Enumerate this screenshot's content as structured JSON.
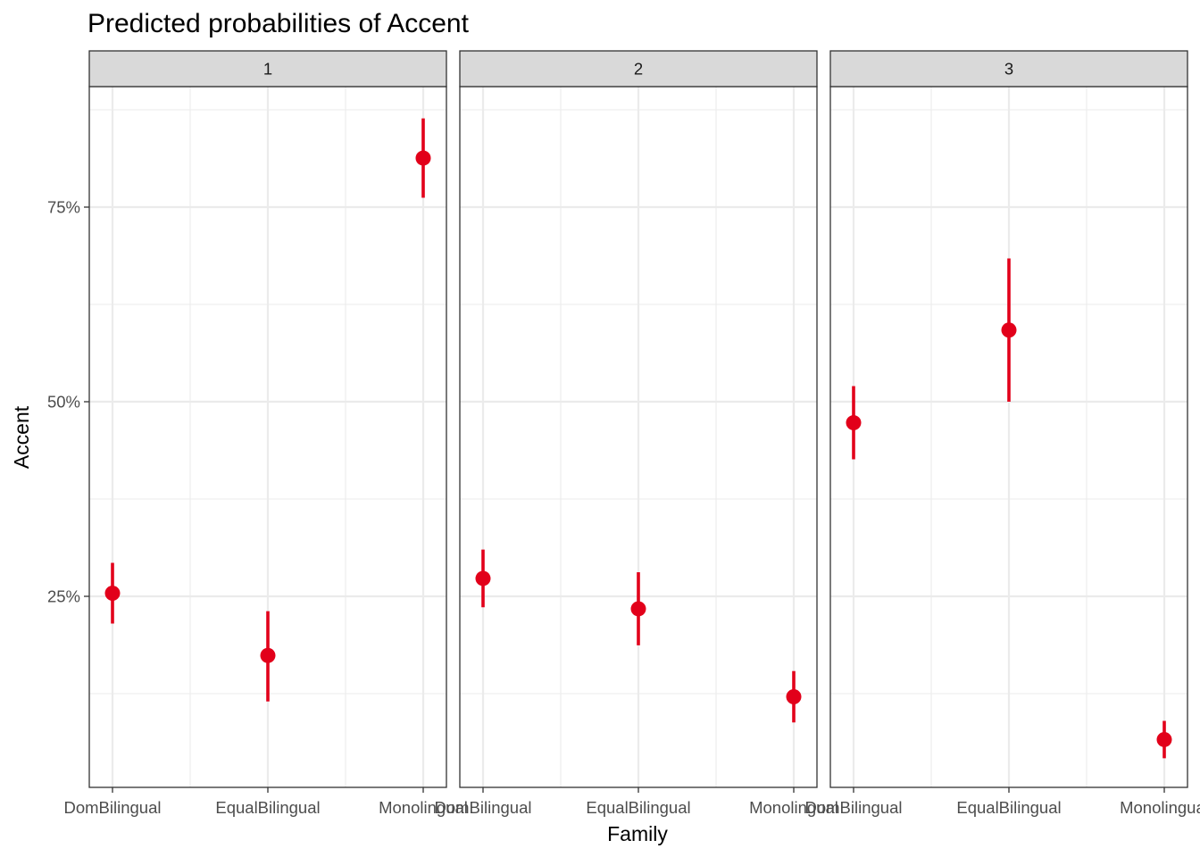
{
  "chart_data": {
    "type": "scatter",
    "title": "Predicted probabilities of Accent",
    "xlabel": "Family",
    "ylabel": "Accent",
    "categories": [
      "DomBilingual",
      "EqualBilingual",
      "Monolingual"
    ],
    "y_ticks": [
      {
        "value": 0.25,
        "label": "25%"
      },
      {
        "value": 0.5,
        "label": "50%"
      },
      {
        "value": 0.75,
        "label": "75%"
      }
    ],
    "ylim": [
      0.0,
      0.9
    ],
    "grid": true,
    "point_color": "#e2001a",
    "facets": [
      {
        "label": "1",
        "points": [
          {
            "category": "DomBilingual",
            "y": 0.254,
            "lo": 0.215,
            "hi": 0.293
          },
          {
            "category": "EqualBilingual",
            "y": 0.174,
            "lo": 0.115,
            "hi": 0.231
          },
          {
            "category": "Monolingual",
            "y": 0.813,
            "lo": 0.762,
            "hi": 0.864
          }
        ]
      },
      {
        "label": "2",
        "points": [
          {
            "category": "DomBilingual",
            "y": 0.273,
            "lo": 0.236,
            "hi": 0.31
          },
          {
            "category": "EqualBilingual",
            "y": 0.234,
            "lo": 0.187,
            "hi": 0.281
          },
          {
            "category": "Monolingual",
            "y": 0.121,
            "lo": 0.088,
            "hi": 0.154
          }
        ]
      },
      {
        "label": "3",
        "points": [
          {
            "category": "DomBilingual",
            "y": 0.473,
            "lo": 0.426,
            "hi": 0.52
          },
          {
            "category": "EqualBilingual",
            "y": 0.592,
            "lo": 0.5,
            "hi": 0.684
          },
          {
            "category": "Monolingual",
            "y": 0.066,
            "lo": 0.042,
            "hi": 0.09
          }
        ]
      }
    ]
  }
}
